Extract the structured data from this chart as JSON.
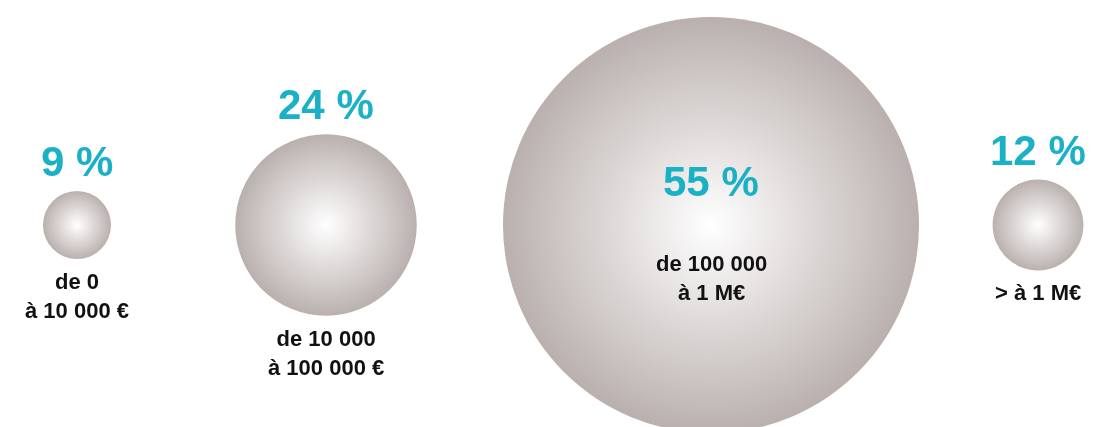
{
  "chart_data": {
    "type": "other",
    "categories": [
      "de 0\nà 10 000 €",
      "de 10 000\nà 100 000 €",
      "de 100 000\nà 1 M€",
      "> à 1 M€"
    ],
    "values": [
      9,
      24,
      55,
      12
    ],
    "value_labels": [
      "9 %",
      "24 %",
      "55 %",
      "12 %"
    ],
    "color": "#9c8f8b"
  }
}
